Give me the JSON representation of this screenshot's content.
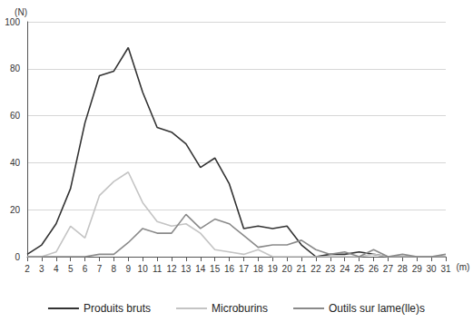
{
  "chart_data": {
    "type": "line",
    "x_label": "(m)",
    "y_label": "(N)",
    "x": [
      2,
      3,
      4,
      5,
      6,
      7,
      8,
      9,
      10,
      11,
      12,
      13,
      14,
      15,
      16,
      17,
      18,
      19,
      20,
      21,
      22,
      23,
      24,
      25,
      26,
      27,
      28,
      29,
      30,
      31
    ],
    "xlim": [
      2,
      31
    ],
    "xticks": [
      2,
      3,
      4,
      5,
      6,
      7,
      8,
      9,
      10,
      11,
      12,
      13,
      14,
      15,
      16,
      17,
      18,
      19,
      20,
      21,
      22,
      23,
      24,
      25,
      26,
      27,
      28,
      29,
      30,
      31
    ],
    "ylim": [
      0,
      100
    ],
    "yticks": [
      0,
      20,
      40,
      60,
      80,
      100
    ],
    "grid": true,
    "legend": "bottom",
    "series": [
      {
        "name": "Produits bruts",
        "color": "#333333",
        "values": [
          1,
          5,
          14,
          29,
          57,
          77,
          79,
          89,
          70,
          55,
          53,
          48,
          38,
          42,
          31,
          12,
          13,
          12,
          13,
          5,
          0,
          1,
          1,
          2,
          1,
          0,
          0,
          0,
          0,
          0
        ]
      },
      {
        "name": "Microburins",
        "color": "#c4c4c4",
        "values": [
          0,
          0,
          2,
          13,
          8,
          26,
          32,
          36,
          23,
          15,
          13,
          14,
          10,
          3,
          2,
          1,
          3,
          0,
          0,
          0,
          0,
          0,
          0,
          0,
          1,
          0,
          0,
          0,
          0,
          0
        ]
      },
      {
        "name": "Outils sur lame(lle)s",
        "color": "#8a8a8a",
        "values": [
          0,
          0,
          0,
          0,
          0,
          1,
          1,
          6,
          12,
          10,
          10,
          18,
          12,
          16,
          14,
          9,
          4,
          5,
          5,
          7,
          3,
          1,
          2,
          0,
          3,
          0,
          1,
          0,
          0,
          1
        ]
      }
    ]
  }
}
